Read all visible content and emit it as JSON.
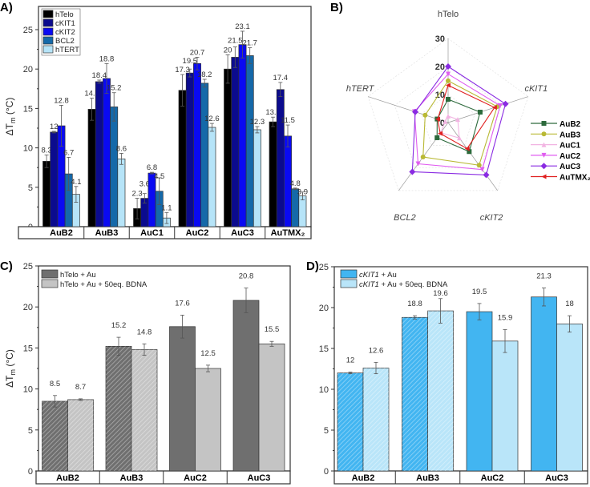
{
  "panels": {
    "a": "A)",
    "b": "B)",
    "c": "C)",
    "d": "D)"
  },
  "chart_data": [
    {
      "id": "A",
      "type": "bar",
      "ylabel": "ΔTm (°C)",
      "ylabel_main": "ΔT",
      "ylabel_sub": "m",
      "ylabel_unit": " (°C)",
      "ylim": [
        0,
        27.5
      ],
      "yticks": [
        "0",
        "5",
        "10",
        "15",
        "20",
        "25"
      ],
      "categories": [
        "AuB2",
        "AuB3",
        "AuC1",
        "AuC2",
        "AuC3",
        "AuTMX₂"
      ],
      "legend_position": "top-left",
      "series": [
        {
          "name": "hTelo",
          "color": "#000000",
          "values": [
            8.3,
            14.9,
            2.3,
            17.3,
            20,
            13.3
          ],
          "errors": [
            0.8,
            1.4,
            1.3,
            2.0,
            1.8,
            0.6
          ],
          "labels": [
            "8.3",
            "14.9",
            "2.3",
            "17.3",
            "20",
            "13.3"
          ]
        },
        {
          "name": "cKIT1",
          "color": "#0b0b8e",
          "values": [
            12,
            18.4,
            3.6,
            19.5,
            21.5,
            17.4
          ],
          "errors": [
            0.1,
            0.2,
            0.6,
            0.5,
            1.3,
            0.9
          ],
          "labels": [
            "12",
            "18.4",
            "3.6",
            "19.5",
            "21.5",
            "17.4"
          ]
        },
        {
          "name": "cKIT2",
          "color": "#0a0af2",
          "values": [
            12.8,
            18.8,
            6.8,
            20.7,
            23.1,
            11.5
          ],
          "errors": [
            2.6,
            1.9,
            0.1,
            0.8,
            1.7,
            1.4
          ],
          "labels": [
            "12.8",
            "18.8",
            "6.8",
            "20.7",
            "23.1",
            "11.5"
          ]
        },
        {
          "name": "BCL2",
          "color": "#1569a9",
          "values": [
            6.7,
            15.2,
            4.5,
            18.2,
            21.7,
            4.8
          ],
          "errors": [
            2.1,
            1.8,
            1.7,
            0.5,
            1.0,
            0.1
          ],
          "labels": [
            "6.7",
            "15.2",
            "4.5",
            "18.2",
            "21.7",
            "4.8"
          ]
        },
        {
          "name": "hTERT",
          "color": "#b6e4f8",
          "values": [
            4.1,
            8.6,
            1.1,
            12.6,
            12.3,
            3.9
          ],
          "errors": [
            1.0,
            0.7,
            0.7,
            0.5,
            0.4,
            0.5
          ],
          "labels": [
            "4.1",
            "8.6",
            "1.1",
            "12.6",
            "12.3",
            "3.9"
          ]
        }
      ]
    },
    {
      "id": "B",
      "type": "radar",
      "axes": [
        "hTelo",
        "cKIT1",
        "cKIT2",
        "BCL2",
        "hTERT"
      ],
      "rlim": [
        0,
        30
      ],
      "rticks": [
        "0",
        "10",
        "20",
        "30"
      ],
      "legend_position": "right",
      "series": [
        {
          "name": "AuB2",
          "color": "#2d6a3c",
          "marker": "square",
          "values": [
            8.3,
            12,
            12.8,
            6.7,
            4.1
          ]
        },
        {
          "name": "AuB3",
          "color": "#b9b935",
          "marker": "circle",
          "values": [
            14.9,
            18.4,
            18.8,
            15.2,
            8.6
          ]
        },
        {
          "name": "AuC1",
          "color": "#f2b4e2",
          "marker": "triangle-up",
          "values": [
            2.3,
            3.6,
            6.8,
            4.5,
            1.1
          ]
        },
        {
          "name": "AuC2",
          "color": "#e05cf0",
          "marker": "triangle-down",
          "values": [
            17.3,
            19.5,
            20.7,
            18.2,
            12.6
          ]
        },
        {
          "name": "AuC3",
          "color": "#8a2be2",
          "marker": "diamond",
          "values": [
            20,
            21.5,
            23.1,
            21.7,
            12.3
          ]
        },
        {
          "name": "AuTMX₂",
          "color": "#e02020",
          "marker": "triangle-left",
          "values": [
            13.3,
            17.4,
            11.5,
            4.8,
            3.9
          ]
        }
      ]
    },
    {
      "id": "C",
      "type": "bar",
      "ylabel": "ΔTm (°C)",
      "ylabel_main": "ΔT",
      "ylabel_sub": "m",
      "ylabel_unit": " (°C)",
      "ylim": [
        0,
        25
      ],
      "yticks": [
        "0",
        "5",
        "10",
        "15",
        "20",
        "25"
      ],
      "categories": [
        "AuB2",
        "AuB3",
        "AuC2",
        "AuC3"
      ],
      "legend_position": "top-left",
      "series": [
        {
          "name": "hTelo + Au",
          "color": "#6f6f6f",
          "values": [
            8.5,
            15.2,
            17.6,
            20.8
          ],
          "errors": [
            0.7,
            1.1,
            1.4,
            1.5
          ],
          "labels": [
            "8.5",
            "15.2",
            "17.6",
            "20.8"
          ]
        },
        {
          "name": "hTelo + Au + 50eq. BDNA",
          "color": "#c4c4c4",
          "values": [
            8.7,
            14.8,
            12.5,
            15.5
          ],
          "errors": [
            0.1,
            0.7,
            0.4,
            0.3
          ],
          "labels": [
            "8.7",
            "14.8",
            "12.5",
            "15.5"
          ]
        }
      ]
    },
    {
      "id": "D",
      "type": "bar",
      "ylabel": "",
      "ylim": [
        0,
        25
      ],
      "yticks": [
        "0",
        "5",
        "10",
        "15",
        "20",
        "25"
      ],
      "categories": [
        "AuB2",
        "AuB3",
        "AuC2",
        "AuC3"
      ],
      "legend_position": "top-left",
      "series": [
        {
          "name": "cKIT1 + Au",
          "name_italic": "cKIT1",
          "name_rest": " + Au",
          "color": "#42b5f1",
          "values": [
            12,
            18.8,
            19.5,
            21.3
          ],
          "errors": [
            0.1,
            0.2,
            1.0,
            1.1
          ],
          "labels": [
            "12",
            "18.8",
            "19.5",
            "21.3"
          ]
        },
        {
          "name": "cKIT1 + Au + 50eq. BDNA",
          "name_italic": "cKIT1",
          "name_rest": " + Au + 50eq. BDNA",
          "color": "#b9e5f9",
          "values": [
            12.6,
            19.6,
            15.9,
            18
          ],
          "errors": [
            0.7,
            1.5,
            1.4,
            1.0
          ],
          "labels": [
            "12.6",
            "19.6",
            "15.9",
            "18"
          ]
        }
      ]
    }
  ]
}
